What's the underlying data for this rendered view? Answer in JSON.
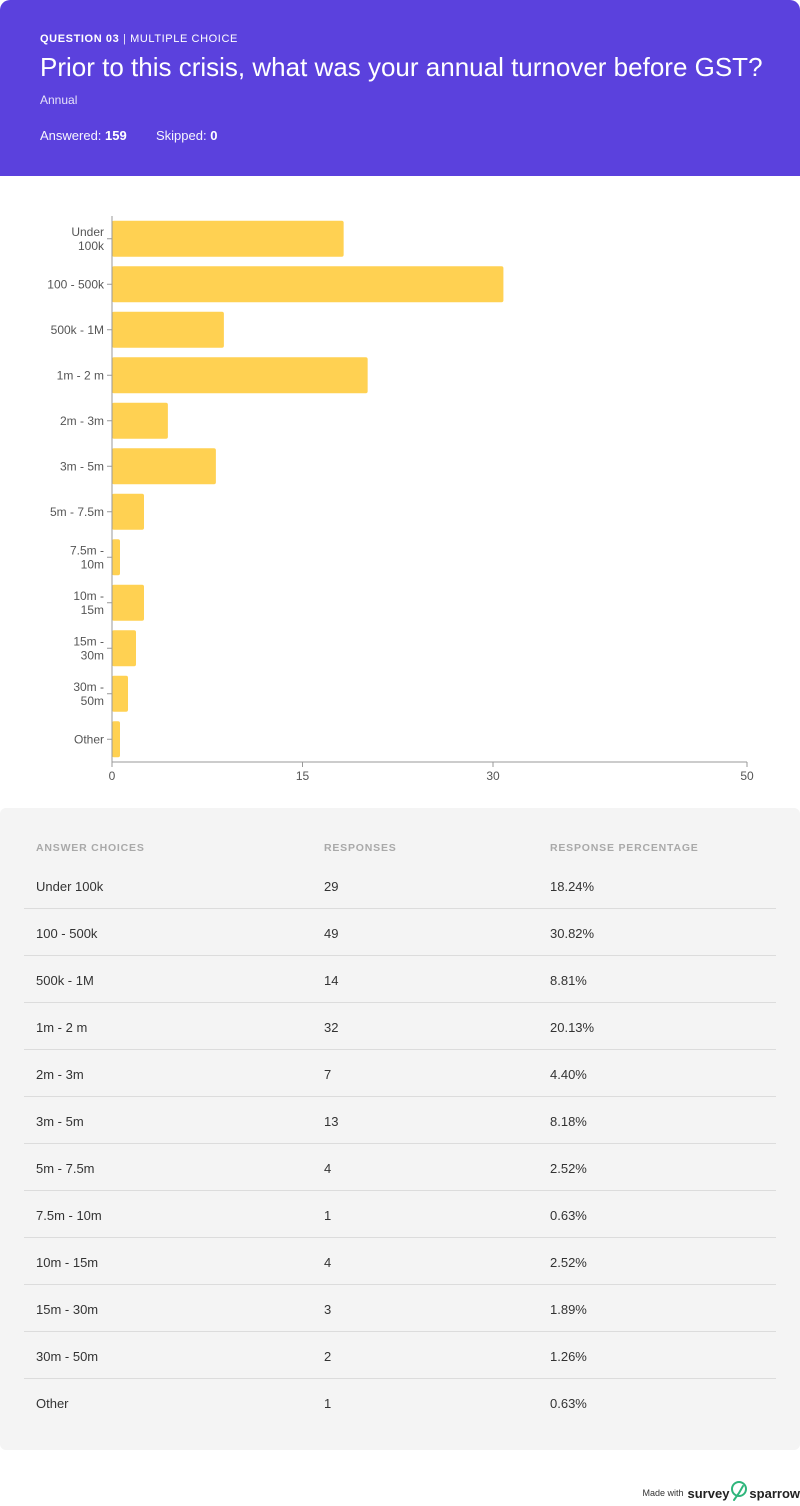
{
  "header": {
    "question_number": "QUESTION 03",
    "question_type": "MULTIPLE CHOICE",
    "title": "Prior to this crisis, what was your annual turnover before GST?",
    "subtitle": "Annual",
    "answered_label": "Answered:",
    "answered_value": "159",
    "skipped_label": "Skipped:",
    "skipped_value": "0",
    "background_color": "#5b41dd"
  },
  "chart_data": {
    "type": "bar",
    "orientation": "horizontal",
    "categories": [
      "Under 100k",
      "100 - 500k",
      "500k - 1M",
      "1m - 2 m",
      "2m - 3m",
      "3m - 5m",
      "5m - 7.5m",
      "7.5m - 10m",
      "10m - 15m",
      "15m - 30m",
      "30m - 50m",
      "Other"
    ],
    "category_tick_labels": [
      [
        "Under",
        "100k"
      ],
      [
        "100 - 500k"
      ],
      [
        "500k - 1M"
      ],
      [
        "1m - 2 m"
      ],
      [
        "2m - 3m"
      ],
      [
        "3m - 5m"
      ],
      [
        "5m - 7.5m"
      ],
      [
        "7.5m -",
        "10m"
      ],
      [
        "10m -",
        "15m"
      ],
      [
        "15m -",
        "30m"
      ],
      [
        "30m -",
        "50m"
      ],
      [
        "Other"
      ]
    ],
    "values": [
      18.24,
      30.82,
      8.81,
      20.13,
      4.4,
      8.18,
      2.52,
      0.63,
      2.52,
      1.89,
      1.26,
      0.63
    ],
    "xlim": [
      0,
      50
    ],
    "xticks": [
      0,
      15,
      30,
      50
    ],
    "grid": false,
    "bar_color": "#ffd152"
  },
  "table": {
    "headers": [
      "ANSWER CHOICES",
      "RESPONSES",
      "RESPONSE PERCENTAGE"
    ],
    "rows": [
      [
        "Under 100k",
        "29",
        "18.24%"
      ],
      [
        "100 - 500k",
        "49",
        "30.82%"
      ],
      [
        "500k - 1M",
        "14",
        "8.81%"
      ],
      [
        "1m - 2 m",
        "32",
        "20.13%"
      ],
      [
        "2m - 3m",
        "7",
        "4.40%"
      ],
      [
        "3m - 5m",
        "13",
        "8.18%"
      ],
      [
        "5m - 7.5m",
        "4",
        "2.52%"
      ],
      [
        "7.5m - 10m",
        "1",
        "0.63%"
      ],
      [
        "10m - 15m",
        "4",
        "2.52%"
      ],
      [
        "15m - 30m",
        "3",
        "1.89%"
      ],
      [
        "30m - 50m",
        "2",
        "1.26%"
      ],
      [
        "Other",
        "1",
        "0.63%"
      ]
    ]
  },
  "footer": {
    "made_with": "Made with",
    "brand_part1": "survey",
    "brand_part2": "sparrow",
    "logo_icon": "sparrow-logo-icon"
  }
}
